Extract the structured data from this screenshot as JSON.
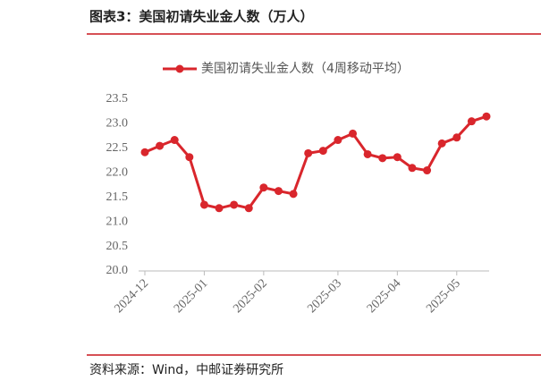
{
  "header": {
    "title": "图表3：美国初请失业金人数（万人）"
  },
  "chart_data": {
    "type": "line",
    "categories": [
      "2024-12",
      null,
      null,
      null,
      "2025-01",
      null,
      null,
      null,
      "2025-02",
      null,
      null,
      null,
      null,
      "2025-03",
      null,
      null,
      null,
      "2025-04",
      null,
      null,
      null,
      "2025-05",
      null,
      null
    ],
    "series": [
      {
        "name": "美国初请失业金人数（4周移动平均）",
        "color": "#d9262c",
        "values": [
          22.42,
          22.55,
          22.67,
          22.32,
          21.35,
          21.28,
          21.35,
          21.28,
          21.7,
          21.63,
          21.57,
          22.4,
          22.45,
          22.67,
          22.8,
          22.38,
          22.3,
          22.32,
          22.1,
          22.05,
          22.6,
          22.72,
          23.05,
          23.15
        ]
      }
    ],
    "ylim": [
      20,
      23.5
    ],
    "yticks": [
      {
        "value": 20,
        "label": "20.0"
      },
      {
        "value": 20.5,
        "label": "20.5"
      },
      {
        "value": 21,
        "label": "21.0"
      },
      {
        "value": 21.5,
        "label": "21.5"
      },
      {
        "value": 22,
        "label": "22.0"
      },
      {
        "value": 22.5,
        "label": "22.5"
      },
      {
        "value": 23,
        "label": "23.0"
      },
      {
        "value": 23.5,
        "label": "23.5"
      }
    ],
    "legend": "top"
  },
  "footer": {
    "source": "资料来源：Wind，中邮证券研究所"
  }
}
